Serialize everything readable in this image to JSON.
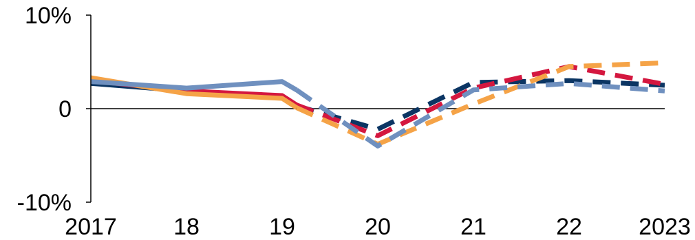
{
  "chart_data": {
    "type": "line",
    "title": "",
    "xlabel": "",
    "ylabel": "",
    "x": [
      2017,
      2018,
      2019,
      2019.15,
      2020,
      2021,
      2022,
      2023
    ],
    "xlim": [
      2017,
      2023
    ],
    "ylim": [
      -10,
      10
    ],
    "x_ticks": [
      {
        "value": 2017,
        "label": "2017"
      },
      {
        "value": 2018,
        "label": "18"
      },
      {
        "value": 2019,
        "label": "19"
      },
      {
        "value": 2020,
        "label": "20"
      },
      {
        "value": 2021,
        "label": "21"
      },
      {
        "value": 2022,
        "label": "22"
      },
      {
        "value": 2023,
        "label": "2023"
      }
    ],
    "y_ticks": [
      {
        "value": 10,
        "label": "10%"
      },
      {
        "value": 0,
        "label": "0"
      },
      {
        "value": -10,
        "label": "-10%"
      }
    ],
    "actual_until": 2019.15,
    "grid": false,
    "legend": "none",
    "series": [
      {
        "color": "#0b3563",
        "values": [
          2.7,
          1.9,
          1.2,
          0.3,
          -2.2,
          2.8,
          3.0,
          2.5
        ]
      },
      {
        "color": "#d4173f",
        "values": [
          3.0,
          1.9,
          1.4,
          0.4,
          -2.9,
          2.2,
          4.5,
          2.6
        ]
      },
      {
        "color": "#f5a347",
        "values": [
          3.3,
          1.6,
          1.1,
          0.1,
          -3.8,
          0.5,
          4.5,
          4.9
        ]
      },
      {
        "color": "#6f90bf",
        "values": [
          2.9,
          2.2,
          2.9,
          2.0,
          -4.0,
          2.0,
          2.7,
          1.9
        ]
      }
    ]
  }
}
